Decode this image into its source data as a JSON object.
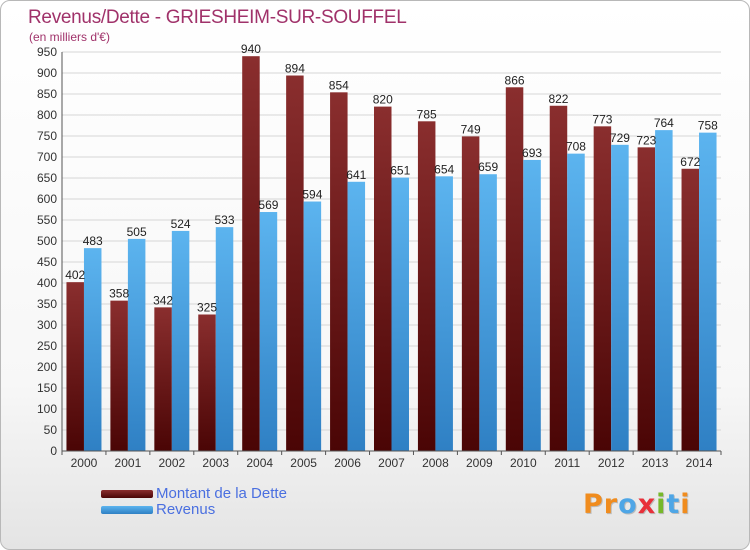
{
  "chart_data": {
    "type": "bar",
    "title": "Revenus/Dette - GRIESHEIM-SUR-SOUFFEL",
    "subtitle": "(en milliers d'€)",
    "categories": [
      "2000",
      "2001",
      "2002",
      "2003",
      "2004",
      "2005",
      "2006",
      "2007",
      "2008",
      "2009",
      "2010",
      "2011",
      "2012",
      "2013",
      "2014"
    ],
    "series": [
      {
        "name": "Montant de la Dette",
        "values": [
          402,
          358,
          342,
          325,
          940,
          894,
          854,
          820,
          785,
          749,
          866,
          822,
          773,
          723,
          672
        ],
        "color": "#7a1f1f"
      },
      {
        "name": "Revenus",
        "values": [
          483,
          505,
          524,
          533,
          569,
          594,
          641,
          651,
          654,
          659,
          693,
          708,
          729,
          764,
          758
        ],
        "color": "#4ea6e6"
      }
    ],
    "ylim": [
      0,
      950
    ],
    "yticks": [
      0,
      50,
      100,
      150,
      200,
      250,
      300,
      350,
      400,
      450,
      500,
      550,
      600,
      650,
      700,
      750,
      800,
      850,
      900,
      950
    ],
    "grid": true,
    "legend_position": "bottom-left"
  },
  "logo": {
    "letters": [
      {
        "ch": "P",
        "color": "#f08c1e"
      },
      {
        "ch": "r",
        "color": "#f08c1e"
      },
      {
        "ch": "o",
        "color": "#4ea6e6"
      },
      {
        "ch": "x",
        "color": "#e8303a"
      },
      {
        "ch": "i",
        "color": "#76b82a"
      },
      {
        "ch": "t",
        "color": "#4ea6e6"
      },
      {
        "ch": "i",
        "color": "#f08c1e"
      }
    ]
  }
}
